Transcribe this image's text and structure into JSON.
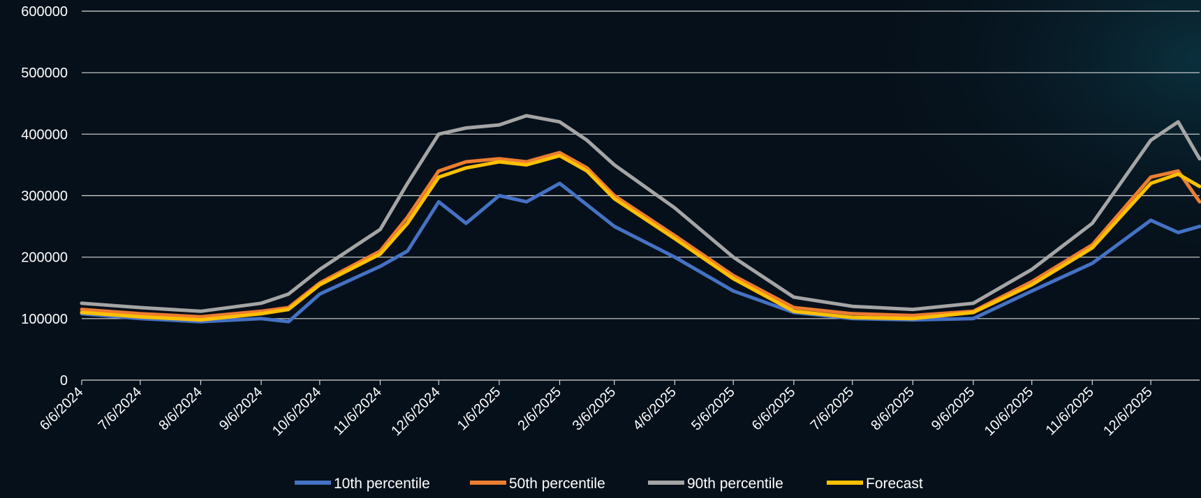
{
  "chart_data": {
    "type": "line",
    "title": "",
    "xlabel": "",
    "ylabel": "",
    "ylim": [
      0,
      600000
    ],
    "yticks": [
      0,
      100000,
      200000,
      300000,
      400000,
      500000,
      600000
    ],
    "ytick_labels": [
      "0",
      "100000",
      "200000",
      "300000",
      "400000",
      "500000",
      "600000"
    ],
    "x_start": "2024-06-06",
    "x_end": "2025-12-31",
    "xticks": [
      "2024-06-06",
      "2024-07-06",
      "2024-08-06",
      "2024-09-06",
      "2024-10-06",
      "2024-11-06",
      "2024-12-06",
      "2025-01-06",
      "2025-02-06",
      "2025-03-06",
      "2025-04-06",
      "2025-05-06",
      "2025-06-06",
      "2025-07-06",
      "2025-08-06",
      "2025-09-06",
      "2025-10-06",
      "2025-11-06",
      "2025-12-06"
    ],
    "xtick_labels": [
      "6/6/2024",
      "7/6/2024",
      "8/6/2024",
      "9/6/2024",
      "10/6/2024",
      "11/6/2024",
      "12/6/2024",
      "1/6/2025",
      "2/6/2025",
      "3/6/2025",
      "4/6/2025",
      "5/6/2025",
      "6/6/2025",
      "7/6/2025",
      "8/6/2025",
      "9/6/2025",
      "10/6/2025",
      "11/6/2025",
      "12/6/2025"
    ],
    "grid": true,
    "legend_position": "bottom",
    "series": [
      {
        "name": "10th percentile",
        "color": "#4472c4",
        "x": [
          "2024-06-06",
          "2024-07-06",
          "2024-08-06",
          "2024-09-06",
          "2024-09-20",
          "2024-10-06",
          "2024-11-06",
          "2024-11-20",
          "2024-12-06",
          "2024-12-20",
          "2025-01-06",
          "2025-01-20",
          "2025-02-06",
          "2025-02-20",
          "2025-03-06",
          "2025-04-06",
          "2025-05-06",
          "2025-06-06",
          "2025-07-06",
          "2025-08-06",
          "2025-09-06",
          "2025-10-06",
          "2025-11-06",
          "2025-12-06",
          "2025-12-20",
          "2025-12-31"
        ],
        "values": [
          108000,
          100000,
          95000,
          100000,
          95000,
          140000,
          185000,
          210000,
          290000,
          255000,
          300000,
          290000,
          320000,
          285000,
          250000,
          200000,
          145000,
          110000,
          100000,
          98000,
          100000,
          145000,
          190000,
          260000,
          240000,
          250000
        ]
      },
      {
        "name": "50th percentile",
        "color": "#ed7d31",
        "x": [
          "2024-06-06",
          "2024-07-06",
          "2024-08-06",
          "2024-09-06",
          "2024-09-20",
          "2024-10-06",
          "2024-11-06",
          "2024-11-20",
          "2024-12-06",
          "2024-12-20",
          "2025-01-06",
          "2025-01-20",
          "2025-02-06",
          "2025-02-20",
          "2025-03-06",
          "2025-04-06",
          "2025-05-06",
          "2025-06-06",
          "2025-07-06",
          "2025-08-06",
          "2025-09-06",
          "2025-10-06",
          "2025-11-06",
          "2025-12-06",
          "2025-12-20",
          "2025-12-31"
        ],
        "values": [
          115000,
          108000,
          103000,
          112000,
          118000,
          158000,
          210000,
          265000,
          340000,
          355000,
          360000,
          355000,
          370000,
          345000,
          300000,
          235000,
          170000,
          118000,
          108000,
          105000,
          112000,
          160000,
          220000,
          330000,
          340000,
          290000
        ]
      },
      {
        "name": "90th percentile",
        "color": "#a5a5a5",
        "x": [
          "2024-06-06",
          "2024-07-06",
          "2024-08-06",
          "2024-09-06",
          "2024-09-20",
          "2024-10-06",
          "2024-11-06",
          "2024-11-20",
          "2024-12-06",
          "2024-12-20",
          "2025-01-06",
          "2025-01-20",
          "2025-02-06",
          "2025-02-20",
          "2025-03-06",
          "2025-04-06",
          "2025-05-06",
          "2025-06-06",
          "2025-07-06",
          "2025-08-06",
          "2025-09-06",
          "2025-10-06",
          "2025-11-06",
          "2025-12-06",
          "2025-12-20",
          "2025-12-31"
        ],
        "values": [
          125000,
          118000,
          112000,
          125000,
          140000,
          180000,
          245000,
          320000,
          400000,
          410000,
          415000,
          430000,
          420000,
          390000,
          350000,
          280000,
          200000,
          135000,
          120000,
          115000,
          125000,
          180000,
          255000,
          390000,
          420000,
          360000
        ]
      },
      {
        "name": "Forecast",
        "color": "#ffc000",
        "x": [
          "2024-06-06",
          "2024-07-06",
          "2024-08-06",
          "2024-09-06",
          "2024-09-20",
          "2024-10-06",
          "2024-11-06",
          "2024-11-20",
          "2024-12-06",
          "2024-12-20",
          "2025-01-06",
          "2025-01-20",
          "2025-02-06",
          "2025-02-20",
          "2025-03-06",
          "2025-04-06",
          "2025-05-06",
          "2025-06-06",
          "2025-07-06",
          "2025-08-06",
          "2025-09-06",
          "2025-10-06",
          "2025-11-06",
          "2025-12-06",
          "2025-12-20",
          "2025-12-31"
        ],
        "values": [
          110000,
          103000,
          98000,
          108000,
          115000,
          155000,
          205000,
          255000,
          330000,
          345000,
          355000,
          350000,
          365000,
          340000,
          295000,
          230000,
          165000,
          112000,
          102000,
          100000,
          110000,
          155000,
          215000,
          320000,
          335000,
          315000
        ]
      }
    ]
  }
}
